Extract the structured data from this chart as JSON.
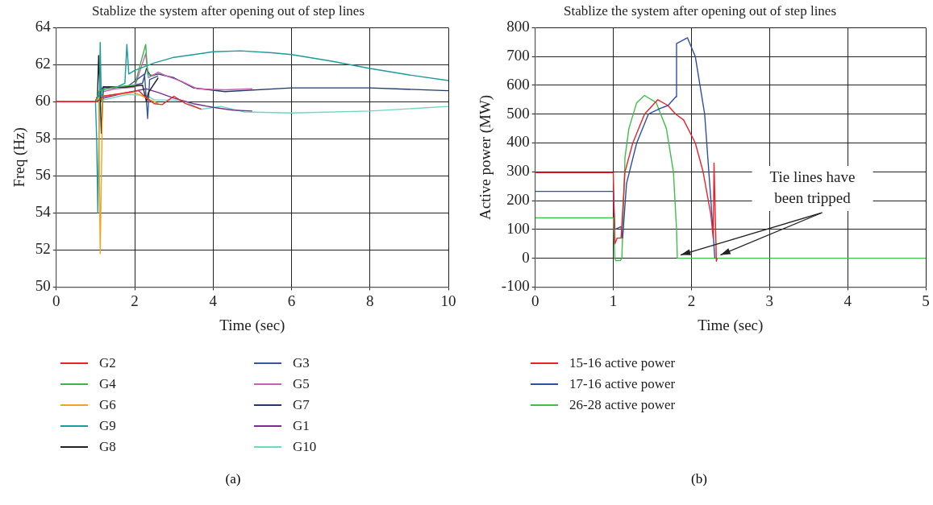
{
  "chart_data": [
    {
      "type": "line",
      "title": "Stablize the system after opening out of step lines",
      "xlabel": "Time (sec)",
      "ylabel": "Freq (Hz)",
      "xlim": [
        0,
        10
      ],
      "xticks": [
        0,
        2,
        4,
        6,
        8,
        10
      ],
      "ylim": [
        50,
        64
      ],
      "yticks": [
        50,
        52,
        54,
        56,
        58,
        60,
        62,
        64
      ],
      "grid": true,
      "legend": "bottom",
      "line_style": "solid",
      "marker": "none",
      "annotations": [
        "(a)"
      ],
      "series": [
        {
          "name": "G2",
          "color": "#e8232a",
          "x": [
            0,
            1,
            1.1,
            1.2,
            1.8,
            2.1,
            2.3,
            2.5,
            2.7,
            3.0,
            3.3,
            3.7
          ],
          "values": [
            60,
            60,
            60.1,
            60.3,
            60.5,
            60.6,
            60.2,
            59.9,
            59.85,
            60.3,
            59.9,
            59.6
          ]
        },
        {
          "name": "G4",
          "color": "#3cb44b",
          "x": [
            0,
            1,
            1.1,
            1.5,
            2.0,
            2.28,
            2.33,
            2.5
          ],
          "values": [
            60,
            60,
            60.6,
            60.8,
            60.9,
            63.1,
            61.5,
            61.4
          ]
        },
        {
          "name": "G6",
          "color": "#f7a21b",
          "x": [
            0,
            1,
            1.08,
            1.12,
            1.15,
            1.18,
            1.5,
            2,
            2.3,
            2.6
          ],
          "values": [
            60,
            60,
            60.2,
            51.8,
            56,
            60.3,
            60.4,
            60.5,
            60.2,
            59.9
          ]
        },
        {
          "name": "G9",
          "color": "#1c9a9c",
          "x": [
            0,
            1,
            1.03,
            1.06,
            1.1,
            1.12,
            1.15,
            1.2,
            1.5,
            1.75,
            1.8,
            1.85,
            2,
            2.5,
            3,
            4,
            4.7,
            5.5,
            6,
            7,
            8,
            9,
            10
          ],
          "values": [
            60,
            60,
            58,
            54,
            60,
            63.2,
            60,
            60.7,
            60.75,
            61,
            63.1,
            61.5,
            61.7,
            62.1,
            62.4,
            62.7,
            62.75,
            62.65,
            62.55,
            62.2,
            61.8,
            61.45,
            61.15
          ]
        },
        {
          "name": "G8",
          "color": "#222222",
          "x": [
            0,
            1,
            1.05,
            1.08,
            1.12,
            1.15,
            1.2,
            1.8,
            2.2,
            2.3,
            2.35,
            2.6
          ],
          "values": [
            60,
            60,
            60.3,
            62.5,
            60.2,
            58.3,
            60.8,
            60.8,
            60.9,
            60,
            60.5,
            61.3
          ]
        },
        {
          "name": "G3",
          "color": "#3a55a4",
          "x": [
            0,
            1,
            1.08,
            1.2,
            1.8,
            2.25,
            2.33,
            2.38,
            2.6
          ],
          "values": [
            60,
            60,
            60.5,
            60.8,
            60.8,
            61.5,
            59.1,
            61.2,
            61.4
          ]
        },
        {
          "name": "G5",
          "color": "#c95fb5",
          "x": [
            0,
            1,
            1.1,
            1.5,
            2,
            2.28,
            2.35,
            2.6,
            2.8,
            3.2,
            3.6,
            4.3,
            5
          ],
          "values": [
            60,
            60,
            60.5,
            60.7,
            60.8,
            62.6,
            61.3,
            61.6,
            61.4,
            61.1,
            60.7,
            60.65,
            60.7
          ]
        },
        {
          "name": "G7",
          "color": "#1f3a6e",
          "x": [
            0,
            1,
            1.1,
            1.2,
            1.8,
            2.2,
            2.3,
            2.4,
            2.6,
            3.0,
            3.5,
            4.3,
            6,
            8,
            10
          ],
          "values": [
            60,
            60,
            60.4,
            60.8,
            60.8,
            61,
            61.8,
            61.4,
            61.5,
            61.3,
            60.75,
            60.55,
            60.75,
            60.75,
            60.6
          ]
        },
        {
          "name": "G1",
          "color": "#7b2c8f",
          "x": [
            0,
            1,
            1.2,
            1.8,
            2.3,
            2.6,
            3.0,
            3.5,
            4.0,
            4.5,
            5.0
          ],
          "values": [
            60,
            60,
            60.2,
            60.5,
            60.7,
            60.5,
            60.2,
            59.9,
            59.7,
            59.55,
            59.5
          ]
        },
        {
          "name": "G10",
          "color": "#6fd6c1",
          "x": [
            0,
            1,
            1.2,
            1.8,
            2.3,
            2.5,
            3.0,
            3.3,
            3.7,
            4.2,
            4.8,
            6,
            8,
            10
          ],
          "values": [
            60,
            60,
            60.1,
            60.4,
            60.35,
            60.1,
            60.1,
            60,
            59.6,
            59.75,
            59.45,
            59.4,
            59.5,
            59.75
          ]
        }
      ]
    },
    {
      "type": "line",
      "title": "Stablize the system after opening out of step lines",
      "xlabel": "Time (sec)",
      "ylabel": "Active power (MW)",
      "xlim": [
        0,
        5
      ],
      "xticks": [
        0,
        1,
        2,
        3,
        4,
        5
      ],
      "ylim": [
        -100,
        800
      ],
      "yticks": [
        -100,
        0,
        100,
        200,
        300,
        400,
        500,
        600,
        700,
        800
      ],
      "grid": true,
      "legend": "bottom",
      "line_style": "solid",
      "marker": "none",
      "annotations": [
        {
          "text": "Tie lines have been tripped",
          "x": 1.82,
          "y": 0
        },
        "(b)"
      ],
      "series": [
        {
          "name": "15-16 active power",
          "color": "#e8232a",
          "x": [
            0,
            1,
            1.02,
            1.05,
            1.1,
            1.15,
            1.25,
            1.4,
            1.57,
            1.7,
            1.8,
            1.9,
            2.05,
            2.15,
            2.25,
            2.28,
            2.29,
            2.32,
            2.33
          ],
          "values": [
            297,
            297,
            50,
            70,
            70,
            300,
            400,
            500,
            550,
            530,
            500,
            480,
            400,
            300,
            150,
            70,
            330,
            -10,
            0
          ]
        },
        {
          "name": "17-16 active power",
          "color": "#2e4fa8",
          "x": [
            0,
            1,
            1.02,
            1.1,
            1.12,
            1.17,
            1.3,
            1.45,
            1.6,
            1.7,
            1.8,
            1.81,
            1.95,
            2.05,
            2.17,
            2.25,
            2.3
          ],
          "values": [
            232,
            232,
            100,
            110,
            70,
            260,
            400,
            500,
            520,
            530,
            560,
            745,
            765,
            700,
            500,
            200,
            0
          ]
        },
        {
          "name": "26-28 active power",
          "color": "#3dbf4a",
          "x": [
            0,
            1,
            1.02,
            1.03,
            1.09,
            1.11,
            1.15,
            1.2,
            1.3,
            1.4,
            1.55,
            1.68,
            1.77,
            1.81,
            1.82,
            5
          ],
          "values": [
            140,
            140,
            0,
            -8,
            -8,
            0,
            350,
            450,
            540,
            565,
            540,
            450,
            300,
            100,
            0,
            0
          ]
        }
      ]
    }
  ]
}
